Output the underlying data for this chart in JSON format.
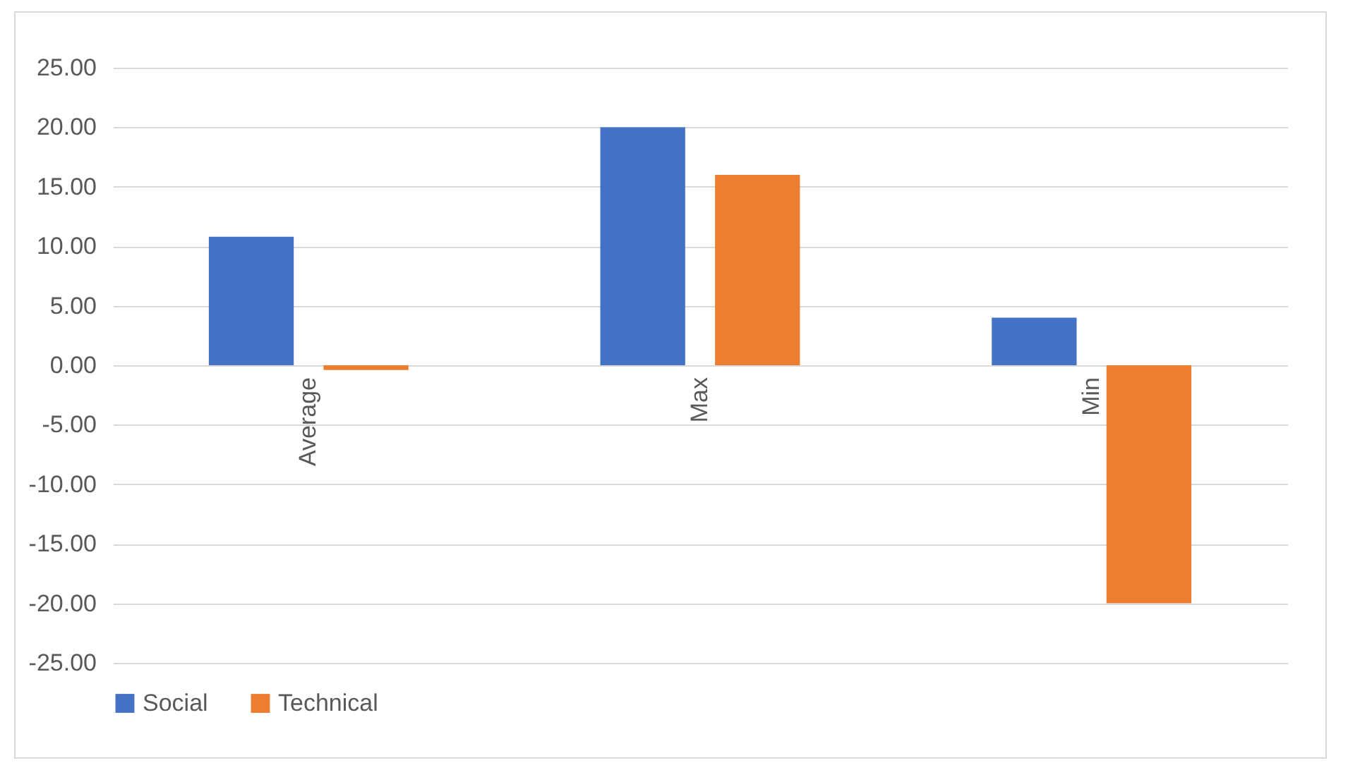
{
  "chart_data": {
    "type": "bar",
    "categories": [
      "Average",
      "Max",
      "Min"
    ],
    "series": [
      {
        "name": "Social",
        "color": "#4472c4",
        "values": [
          10.8,
          20,
          4
        ]
      },
      {
        "name": "Technical",
        "color": "#ed7d31",
        "values": [
          -0.4,
          16,
          -20
        ]
      }
    ],
    "ylim": [
      -25,
      25
    ],
    "yticks": [
      {
        "value": -25,
        "label": "-25.00"
      },
      {
        "value": -20,
        "label": "-20.00"
      },
      {
        "value": -15,
        "label": "-15.00"
      },
      {
        "value": -10,
        "label": "-10.00"
      },
      {
        "value": -5,
        "label": "-5.00"
      },
      {
        "value": 0,
        "label": "0.00"
      },
      {
        "value": 5,
        "label": "5.00"
      },
      {
        "value": 10,
        "label": "10.00"
      },
      {
        "value": 15,
        "label": "15.00"
      },
      {
        "value": 20,
        "label": "20.00"
      },
      {
        "value": 25,
        "label": "25.00"
      }
    ],
    "grid": "y",
    "legend": "bottom"
  }
}
